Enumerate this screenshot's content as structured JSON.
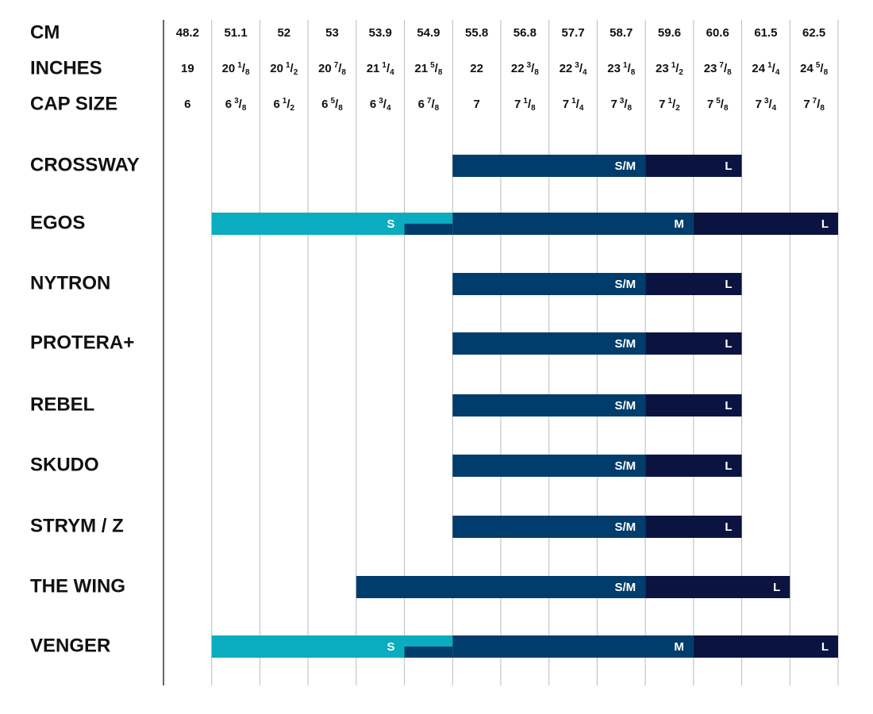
{
  "table": {
    "row_headers": [
      "CM",
      "INCHES",
      "CAP SIZE"
    ],
    "cm": [
      48.2,
      51.1,
      52,
      53,
      53.9,
      54.9,
      55.8,
      56.8,
      57.7,
      58.7,
      59.6,
      60.6,
      61.5,
      62.5
    ],
    "inches": [
      {
        "whole": "19"
      },
      {
        "whole": "20",
        "num": "1",
        "den": "8"
      },
      {
        "whole": "20",
        "num": "1",
        "den": "2"
      },
      {
        "whole": "20",
        "num": "7",
        "den": "8"
      },
      {
        "whole": "21",
        "num": "1",
        "den": "4"
      },
      {
        "whole": "21",
        "num": "5",
        "den": "8"
      },
      {
        "whole": "22"
      },
      {
        "whole": "22",
        "num": "3",
        "den": "8"
      },
      {
        "whole": "22",
        "num": "3",
        "den": "4"
      },
      {
        "whole": "23",
        "num": "1",
        "den": "8"
      },
      {
        "whole": "23",
        "num": "1",
        "den": "2"
      },
      {
        "whole": "23",
        "num": "7",
        "den": "8"
      },
      {
        "whole": "24",
        "num": "1",
        "den": "4"
      },
      {
        "whole": "24",
        "num": "5",
        "den": "8"
      }
    ],
    "cap_size": [
      {
        "whole": "6"
      },
      {
        "whole": "6",
        "num": "3",
        "den": "8"
      },
      {
        "whole": "6",
        "num": "1",
        "den": "2"
      },
      {
        "whole": "6",
        "num": "5",
        "den": "8"
      },
      {
        "whole": "6",
        "num": "3",
        "den": "4"
      },
      {
        "whole": "6",
        "num": "7",
        "den": "8"
      },
      {
        "whole": "7"
      },
      {
        "whole": "7",
        "num": "1",
        "den": "8"
      },
      {
        "whole": "7",
        "num": "1",
        "den": "4"
      },
      {
        "whole": "7",
        "num": "3",
        "den": "8"
      },
      {
        "whole": "7",
        "num": "1",
        "den": "2"
      },
      {
        "whole": "7",
        "num": "5",
        "den": "8"
      },
      {
        "whole": "7",
        "num": "3",
        "den": "4"
      },
      {
        "whole": "7",
        "num": "7",
        "den": "8"
      }
    ],
    "size_colors": {
      "S": "#0aacbf",
      "S/M": "#013d6c",
      "M": "#013d6c",
      "L": "#0b1440"
    },
    "products": [
      {
        "name": "CROSSWAY",
        "sizes": [
          {
            "label": "S/M",
            "from": 55.8,
            "to": 58.7
          },
          {
            "label": "L",
            "from": 59.6,
            "to": 60.6
          }
        ]
      },
      {
        "name": "EGOS",
        "sizes": [
          {
            "label": "S",
            "from": 51.1,
            "to": 54.9
          },
          {
            "label": "M",
            "from": 54.9,
            "to": 59.6
          },
          {
            "label": "L",
            "from": 60.6,
            "to": 62.5
          }
        ]
      },
      {
        "name": "NYTRON",
        "sizes": [
          {
            "label": "S/M",
            "from": 55.8,
            "to": 58.7
          },
          {
            "label": "L",
            "from": 59.6,
            "to": 60.6
          }
        ]
      },
      {
        "name": "PROTERA+",
        "sizes": [
          {
            "label": "S/M",
            "from": 55.8,
            "to": 58.7
          },
          {
            "label": "L",
            "from": 59.6,
            "to": 60.6
          }
        ]
      },
      {
        "name": "REBEL",
        "sizes": [
          {
            "label": "S/M",
            "from": 55.8,
            "to": 58.7
          },
          {
            "label": "L",
            "from": 59.6,
            "to": 60.6
          }
        ]
      },
      {
        "name": "SKUDO",
        "sizes": [
          {
            "label": "S/M",
            "from": 55.8,
            "to": 58.7
          },
          {
            "label": "L",
            "from": 59.6,
            "to": 60.6
          }
        ]
      },
      {
        "name": "STRYM / Z",
        "sizes": [
          {
            "label": "S/M",
            "from": 55.8,
            "to": 58.7
          },
          {
            "label": "L",
            "from": 59.6,
            "to": 60.6
          }
        ]
      },
      {
        "name": "THE WING",
        "sizes": [
          {
            "label": "S/M",
            "from": 53.9,
            "to": 58.7
          },
          {
            "label": "L",
            "from": 59.6,
            "to": 61.5
          }
        ]
      },
      {
        "name": "VENGER",
        "sizes": [
          {
            "label": "S",
            "from": 51.1,
            "to": 54.9
          },
          {
            "label": "M",
            "from": 54.9,
            "to": 59.6
          },
          {
            "label": "L",
            "from": 60.6,
            "to": 62.5
          }
        ]
      }
    ]
  }
}
